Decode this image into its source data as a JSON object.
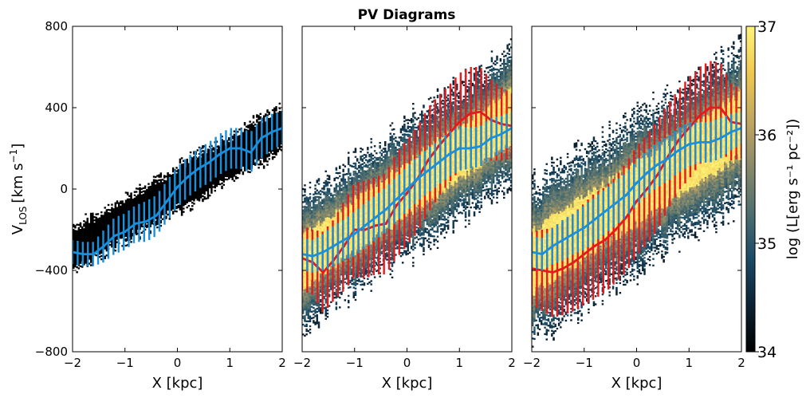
{
  "chart_data": {
    "type": "scatter",
    "title": "PV Diagrams",
    "panels": [
      {
        "id": "left",
        "xlabel": "X [kpc]",
        "ylabel_main": "V",
        "ylabel_sub": "LOS",
        "ylabel_units": "[km s",
        "ylabel_exp": "−1",
        "ylabel_close": "]",
        "xlim": [
          -2,
          2
        ],
        "ylim": [
          -800,
          800
        ],
        "xticks": [
          -2,
          -1,
          0,
          1,
          2
        ],
        "xtick_labels": [
          "−2",
          "−1",
          "0",
          "1",
          "2"
        ],
        "yticks": [
          -800,
          -400,
          0,
          400,
          800
        ],
        "ytick_labels": [
          "−800",
          "−400",
          "0",
          "400",
          "800"
        ],
        "cloud": {
          "slope": 150,
          "offset": 0,
          "halfwidth": 80,
          "color": "#000000"
        },
        "series": [
          {
            "name": "mean velocity (blue)",
            "color": "#1a8fdc",
            "x": [
              -2.0,
              -1.8,
              -1.6,
              -1.4,
              -1.2,
              -1.0,
              -0.8,
              -0.6,
              -0.4,
              -0.2,
              0.0,
              0.2,
              0.4,
              0.6,
              0.8,
              1.0,
              1.2,
              1.4,
              1.6,
              1.8,
              2.0
            ],
            "y": [
              -310,
              -320,
              -320,
              -280,
              -230,
              -210,
              -170,
              -160,
              -130,
              -60,
              10,
              60,
              100,
              130,
              170,
              200,
              200,
              180,
              250,
              280,
              300
            ],
            "err": [
              60,
              60,
              60,
              80,
              90,
              90,
              90,
              100,
              100,
              100,
              100,
              100,
              100,
              100,
              100,
              100,
              100,
              100,
              100,
              90,
              80
            ]
          }
        ]
      },
      {
        "id": "middle",
        "xlabel": "X [kpc]",
        "xlim": [
          -2,
          2
        ],
        "ylim": [
          -800,
          800
        ],
        "xticks": [
          -2,
          -1,
          0,
          1,
          2
        ],
        "xtick_labels": [
          "−2",
          "−1",
          "0",
          "1",
          "2"
        ],
        "cloud": {
          "slope": 180,
          "offset": 0,
          "halfwidth": 220,
          "color": "lum"
        },
        "series": [
          {
            "name": "mean velocity (red)",
            "color": "#e41a1c",
            "x": [
              -2.0,
              -1.8,
              -1.6,
              -1.4,
              -1.2,
              -1.0,
              -0.8,
              -0.6,
              -0.4,
              -0.2,
              0.0,
              0.2,
              0.4,
              0.6,
              0.8,
              1.0,
              1.2,
              1.4,
              1.6,
              1.8,
              2.0
            ],
            "y": [
              -340,
              -360,
              -410,
              -350,
              -280,
              -200,
              -200,
              -180,
              -170,
              -80,
              -20,
              50,
              140,
              210,
              270,
              330,
              370,
              380,
              340,
              320,
              310
            ],
            "err": [
              160,
              160,
              200,
              200,
              220,
              230,
              240,
              240,
              250,
              260,
              260,
              260,
              260,
              250,
              240,
              240,
              230,
              220,
              200,
              180,
              160
            ]
          },
          {
            "name": "mean velocity (blue)",
            "color": "#1a8fdc",
            "x": [
              -2.0,
              -1.8,
              -1.6,
              -1.4,
              -1.2,
              -1.0,
              -0.8,
              -0.6,
              -0.4,
              -0.2,
              0.0,
              0.2,
              0.4,
              0.6,
              0.8,
              1.0,
              1.2,
              1.4,
              1.6,
              1.8,
              2.0
            ],
            "y": [
              -320,
              -330,
              -310,
              -280,
              -250,
              -220,
              -180,
              -140,
              -100,
              -50,
              0,
              50,
              90,
              130,
              170,
              200,
              200,
              210,
              250,
              270,
              300
            ],
            "err": [
              80,
              80,
              90,
              100,
              100,
              110,
              110,
              110,
              110,
              110,
              110,
              110,
              110,
              110,
              110,
              110,
              100,
              100,
              100,
              90,
              80
            ]
          }
        ]
      },
      {
        "id": "right",
        "xlabel": "X [kpc]",
        "xlim": [
          -2,
          2
        ],
        "ylim": [
          -800,
          800
        ],
        "xticks": [
          -2,
          -1,
          0,
          1,
          2
        ],
        "xtick_labels": [
          "−2",
          "−1",
          "0",
          "1",
          "2"
        ],
        "cloud": {
          "slope": 170,
          "offset": -20,
          "halfwidth": 250,
          "color": "lum"
        },
        "series": [
          {
            "name": "mean velocity (red)",
            "color": "#e41a1c",
            "x": [
              -2.0,
              -1.8,
              -1.6,
              -1.4,
              -1.2,
              -1.0,
              -0.8,
              -0.6,
              -0.4,
              -0.2,
              0.0,
              0.2,
              0.4,
              0.6,
              0.8,
              1.0,
              1.2,
              1.4,
              1.6,
              1.8,
              2.0
            ],
            "y": [
              -390,
              -400,
              -410,
              -390,
              -360,
              -320,
              -280,
              -250,
              -200,
              -140,
              -60,
              0,
              70,
              160,
              240,
              300,
              360,
              400,
              400,
              330,
              320
            ],
            "err": [
              180,
              200,
              220,
              230,
              240,
              250,
              260,
              260,
              260,
              270,
              270,
              270,
              270,
              260,
              250,
              250,
              240,
              230,
              220,
              190,
              170
            ]
          },
          {
            "name": "mean velocity (blue)",
            "color": "#1a8fdc",
            "x": [
              -2.0,
              -1.8,
              -1.6,
              -1.4,
              -1.2,
              -1.0,
              -0.8,
              -0.6,
              -0.4,
              -0.2,
              0.0,
              0.2,
              0.4,
              0.6,
              0.8,
              1.0,
              1.2,
              1.4,
              1.6,
              1.8,
              2.0
            ],
            "y": [
              -310,
              -320,
              -280,
              -250,
              -220,
              -190,
              -150,
              -110,
              -70,
              -30,
              30,
              80,
              120,
              150,
              190,
              220,
              230,
              230,
              250,
              280,
              300
            ],
            "err": [
              80,
              80,
              90,
              100,
              100,
              110,
              110,
              110,
              110,
              110,
              110,
              110,
              110,
              110,
              110,
              110,
              100,
              100,
              100,
              90,
              80
            ]
          }
        ]
      }
    ],
    "colorbar": {
      "label": "log (L[erg s⁻¹ pc⁻²])",
      "range": [
        34,
        37
      ],
      "ticks": [
        34,
        35,
        36,
        37
      ],
      "tick_labels": [
        "34",
        "35",
        "36",
        "37"
      ],
      "colormap": [
        "#000000",
        "#0b2233",
        "#1a4a66",
        "#4f6f6f",
        "#8a8a6a",
        "#c2a760",
        "#f0c850",
        "#fff37a"
      ]
    }
  }
}
